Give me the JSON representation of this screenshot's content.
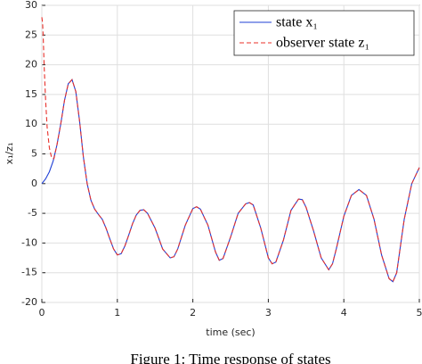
{
  "chart_data": {
    "type": "line",
    "xlabel": "time (sec)",
    "ylabel": "x₁/z₁",
    "caption": "Figure 1: Time response of states",
    "xlim": [
      0,
      5
    ],
    "xticks": [
      0,
      1,
      2,
      3,
      4,
      5
    ],
    "ylim": [
      -20,
      30
    ],
    "yticks": [
      -20,
      -15,
      -10,
      -5,
      0,
      5,
      10,
      15,
      20,
      25,
      30
    ],
    "grid": true,
    "legend": "upper right",
    "series": [
      {
        "name": "state x₁",
        "color": "#1f3fd6",
        "dash": false,
        "x": [
          0,
          0.05,
          0.1,
          0.15,
          0.2,
          0.25,
          0.3,
          0.35,
          0.4,
          0.45,
          0.5,
          0.55,
          0.6,
          0.65,
          0.7,
          0.75,
          0.8,
          0.85,
          0.9,
          0.95,
          1.0,
          1.05,
          1.1,
          1.15,
          1.2,
          1.25,
          1.3,
          1.35,
          1.4,
          1.5,
          1.6,
          1.7,
          1.75,
          1.8,
          1.9,
          2.0,
          2.05,
          2.1,
          2.2,
          2.3,
          2.35,
          2.4,
          2.5,
          2.6,
          2.7,
          2.75,
          2.8,
          2.9,
          3.0,
          3.05,
          3.1,
          3.2,
          3.3,
          3.4,
          3.45,
          3.5,
          3.6,
          3.7,
          3.8,
          3.85,
          3.9,
          4.0,
          4.1,
          4.2,
          4.3,
          4.4,
          4.5,
          4.6,
          4.65,
          4.7,
          4.8,
          4.9,
          5.0
        ],
        "values": [
          0,
          0.8,
          2,
          3.8,
          6.5,
          10,
          14,
          16.8,
          17.5,
          15.5,
          10.5,
          4.5,
          0,
          -2.8,
          -4.3,
          -5.2,
          -6,
          -7.5,
          -9.3,
          -11,
          -12,
          -11.8,
          -10.5,
          -8.7,
          -6.8,
          -5.3,
          -4.5,
          -4.4,
          -5,
          -7.5,
          -11,
          -12.5,
          -12.3,
          -11,
          -7,
          -4.2,
          -3.9,
          -4.3,
          -7,
          -11.5,
          -12.9,
          -12.6,
          -9,
          -5,
          -3.4,
          -3.2,
          -3.6,
          -7.5,
          -12.5,
          -13.5,
          -13.2,
          -9.5,
          -4.5,
          -2.6,
          -2.7,
          -4,
          -8,
          -12.5,
          -14.5,
          -13.5,
          -11,
          -5.5,
          -2,
          -1,
          -2,
          -6,
          -12,
          -16,
          -16.5,
          -15,
          -6,
          0,
          2.7
        ]
      },
      {
        "name": "observer state z₁",
        "color": "#e8302a",
        "dash": true,
        "x": [
          0,
          0.01,
          0.02,
          0.03,
          0.05,
          0.07,
          0.1,
          0.13,
          0.16,
          0.2,
          0.25,
          0.3,
          0.35,
          0.4,
          0.45,
          0.5,
          0.55,
          0.6,
          0.65,
          0.7,
          0.75,
          0.8,
          0.85,
          0.9,
          0.95,
          1.0,
          1.05,
          1.1,
          1.15,
          1.2,
          1.25,
          1.3,
          1.35,
          1.4,
          1.5,
          1.6,
          1.7,
          1.75,
          1.8,
          1.9,
          2.0,
          2.05,
          2.1,
          2.2,
          2.3,
          2.35,
          2.4,
          2.5,
          2.6,
          2.7,
          2.75,
          2.8,
          2.9,
          3.0,
          3.05,
          3.1,
          3.2,
          3.3,
          3.4,
          3.45,
          3.5,
          3.6,
          3.7,
          3.8,
          3.85,
          3.9,
          4.0,
          4.1,
          4.2,
          4.3,
          4.4,
          4.5,
          4.6,
          4.65,
          4.7,
          4.8,
          4.9,
          5.0
        ],
        "values": [
          28,
          27,
          24,
          20,
          14,
          9.5,
          6,
          4.3,
          4.2,
          6.5,
          10,
          14,
          16.8,
          17.5,
          15.5,
          10.5,
          4.5,
          0,
          -2.8,
          -4.3,
          -5.2,
          -6,
          -7.5,
          -9.3,
          -11,
          -12,
          -11.8,
          -10.5,
          -8.7,
          -6.8,
          -5.3,
          -4.5,
          -4.4,
          -5,
          -7.5,
          -11,
          -12.5,
          -12.3,
          -11,
          -7,
          -4.2,
          -3.9,
          -4.3,
          -7,
          -11.5,
          -12.9,
          -12.6,
          -9,
          -5,
          -3.4,
          -3.2,
          -3.6,
          -7.5,
          -12.5,
          -13.5,
          -13.2,
          -9.5,
          -4.5,
          -2.6,
          -2.7,
          -4,
          -8,
          -12.5,
          -14.5,
          -13.5,
          -11,
          -5.5,
          -2,
          -1,
          -2,
          -6,
          -12,
          -16,
          -16.5,
          -15,
          -6,
          0,
          2.7
        ]
      }
    ]
  }
}
